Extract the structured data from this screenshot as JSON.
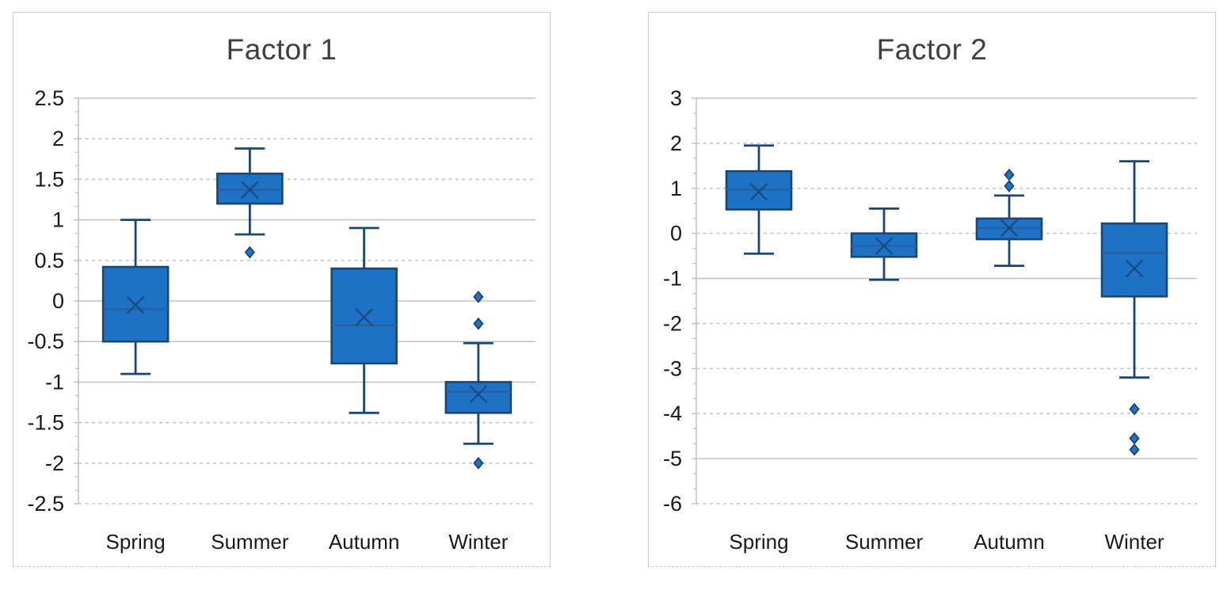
{
  "colors": {
    "box_fill": "#1e72c6",
    "box_border": "#1a4673",
    "median_line": "#2a5f9e",
    "gridline": "#c4c4c4",
    "axis_line": "#c0c0c0",
    "tick_text": "#1a1a1a",
    "title_text": "#3f3f3f",
    "chart_border": "#cccccc",
    "background": "#ffffff"
  },
  "chart_data": [
    {
      "type": "boxplot",
      "title": "Factor 1",
      "categories": [
        "Spring",
        "Summer",
        "Autumn",
        "Winter"
      ],
      "xlabel": "",
      "ylabel": "",
      "ylim": [
        -2.5,
        2.5
      ],
      "ytick_step": 0.5,
      "ytick_labels": [
        "2.5",
        "2",
        "1.5",
        "1",
        "0.5",
        "0",
        "-0.5",
        "-1",
        "-1.5",
        "-2",
        "-2.5"
      ],
      "solid_gridlines": [
        2.5,
        1,
        0,
        -0.5,
        -1
      ],
      "grid": true,
      "legend": "none",
      "series": [
        {
          "category": "Spring",
          "whisker_low": -0.9,
          "q1": -0.5,
          "median": -0.1,
          "mean": -0.05,
          "q3": 0.42,
          "whisker_high": 1.0,
          "outliers": []
        },
        {
          "category": "Summer",
          "whisker_low": 0.82,
          "q1": 1.2,
          "median": 1.37,
          "mean": 1.37,
          "q3": 1.57,
          "whisker_high": 1.88,
          "outliers": [
            0.6
          ]
        },
        {
          "category": "Autumn",
          "whisker_low": -1.38,
          "q1": -0.77,
          "median": -0.3,
          "mean": -0.2,
          "q3": 0.4,
          "whisker_high": 0.9,
          "outliers": []
        },
        {
          "category": "Winter",
          "whisker_low": -1.76,
          "q1": -1.38,
          "median": -1.12,
          "mean": -1.15,
          "q3": -1.0,
          "whisker_high": -0.52,
          "outliers": [
            0.05,
            -0.28,
            -2.0
          ]
        }
      ]
    },
    {
      "type": "boxplot",
      "title": "Factor 2",
      "categories": [
        "Spring",
        "Summer",
        "Autumn",
        "Winter"
      ],
      "xlabel": "",
      "ylabel": "",
      "ylim": [
        -6,
        3
      ],
      "ytick_step": 1,
      "ytick_labels": [
        "3",
        "2",
        "1",
        "0",
        "-1",
        "-2",
        "-3",
        "-4",
        "-5",
        "-6"
      ],
      "solid_gridlines": [
        3,
        -1,
        -5
      ],
      "grid": true,
      "legend": "none",
      "series": [
        {
          "category": "Spring",
          "whisker_low": -0.45,
          "q1": 0.53,
          "median": 0.97,
          "mean": 0.92,
          "q3": 1.38,
          "whisker_high": 1.95,
          "outliers": []
        },
        {
          "category": "Summer",
          "whisker_low": -1.03,
          "q1": -0.52,
          "median": -0.28,
          "mean": -0.28,
          "q3": 0.0,
          "whisker_high": 0.55,
          "outliers": []
        },
        {
          "category": "Autumn",
          "whisker_low": -0.72,
          "q1": -0.13,
          "median": 0.12,
          "mean": 0.12,
          "q3": 0.33,
          "whisker_high": 0.84,
          "outliers": [
            1.3,
            1.05
          ]
        },
        {
          "category": "Winter",
          "whisker_low": -3.2,
          "q1": -1.4,
          "median": -0.43,
          "mean": -0.78,
          "q3": 0.22,
          "whisker_high": 1.6,
          "outliers": [
            -3.9,
            -4.55,
            -4.8
          ]
        }
      ]
    }
  ]
}
